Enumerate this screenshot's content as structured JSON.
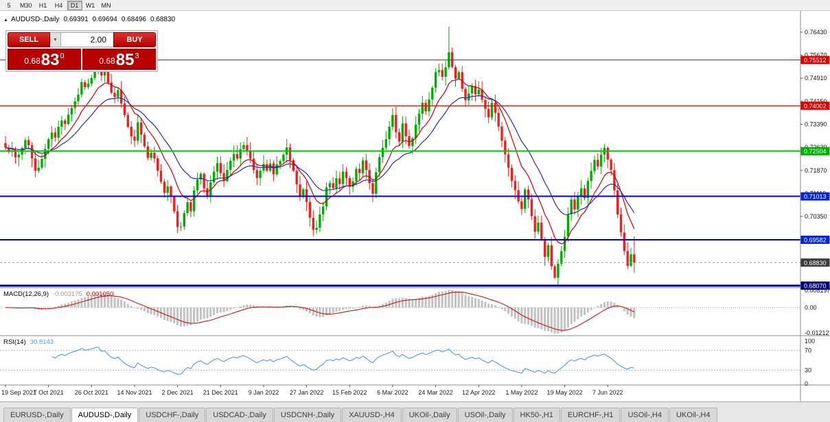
{
  "toolbar": {
    "timeframes": [
      {
        "label": "5",
        "active": false
      },
      {
        "label": "M30",
        "active": false
      },
      {
        "label": "H1",
        "active": false
      },
      {
        "label": "H4",
        "active": false
      },
      {
        "label": "D1",
        "active": true
      },
      {
        "label": "W1",
        "active": false
      },
      {
        "label": "MN",
        "active": false
      }
    ]
  },
  "icons": {
    "symbol_arrow": "▲",
    "dropdown_arrow": "▼"
  },
  "chart": {
    "title": "AUDUSD-,Daily",
    "ohlc": {
      "open": "0.69391",
      "high": "0.69694",
      "low": "0.68496",
      "close": "0.68830"
    }
  },
  "trade_panel": {
    "sell_label": "SELL",
    "buy_label": "BUY",
    "volume": "2.00",
    "sell_price": {
      "prefix": "0.68",
      "big": "83",
      "sup": "0"
    },
    "buy_price": {
      "prefix": "0.68",
      "big": "85",
      "sup": "3"
    }
  },
  "price_axis": {
    "ticks": [
      "0.76430",
      "0.75670",
      "0.74910",
      "0.74150",
      "0.73390",
      "0.72630",
      "0.71870",
      "0.71110",
      "0.70350",
      "0.69590",
      "0.68830",
      "0.68070"
    ],
    "badges": [
      {
        "text": "0.75512",
        "price": 0.75512,
        "color": "#dd0000"
      },
      {
        "text": "0.74002",
        "price": 0.74002,
        "color": "#dd0000"
      },
      {
        "text": "0.72504",
        "price": 0.72504,
        "color": "#00b000"
      },
      {
        "text": "0.71013",
        "price": 0.71013,
        "color": "#0026d8"
      },
      {
        "text": "0.69582",
        "price": 0.69582,
        "color": "#0026d8"
      },
      {
        "text": "0.68830",
        "price": 0.6883,
        "color": "#3a3a3a"
      },
      {
        "text": "0.68070",
        "price": 0.6807,
        "color": "#000080"
      }
    ]
  },
  "hlines": [
    {
      "price": 0.75512,
      "color": "#e00000",
      "w": 1
    },
    {
      "price": 0.74002,
      "color": "#e00000",
      "w": 1
    },
    {
      "price": 0.72504,
      "color": "#00c000",
      "w": 2
    },
    {
      "price": 0.71013,
      "color": "#0000e0",
      "w": 2
    },
    {
      "price": 0.69582,
      "color": "#0000e0",
      "w": 2
    },
    {
      "price": 0.6807,
      "color": "#000090",
      "w": 3
    }
  ],
  "bid_line": {
    "price": 0.6883,
    "color": "#9a9a9a"
  },
  "chart_data": {
    "type": "candlestick",
    "symbol": "AUDUSD",
    "timeframe": "Daily",
    "y_range": [
      0.68,
      0.7713
    ],
    "up_color": "#00ae00",
    "down_color": "#ef2020",
    "closes": [
      0.7262,
      0.7248,
      0.7252,
      0.723,
      0.7239,
      0.7261,
      0.7287,
      0.727,
      0.7227,
      0.7186,
      0.7196,
      0.7225,
      0.7258,
      0.729,
      0.7312,
      0.7295,
      0.7331,
      0.7352,
      0.734,
      0.7371,
      0.7393,
      0.7415,
      0.7437,
      0.7478,
      0.7462,
      0.7473,
      0.7492,
      0.7518,
      0.7536,
      0.75,
      0.7513,
      0.7477,
      0.7443,
      0.7429,
      0.7452,
      0.7408,
      0.737,
      0.7331,
      0.7299,
      0.7285,
      0.7345,
      0.7305,
      0.7266,
      0.7228,
      0.7245,
      0.7227,
      0.7186,
      0.715,
      0.7113,
      0.7134,
      0.7101,
      0.7052,
      0.7,
      0.7002,
      0.7046,
      0.7082,
      0.7052,
      0.7121,
      0.7157,
      0.7176,
      0.7128,
      0.7103,
      0.7148,
      0.7183,
      0.7211,
      0.7178,
      0.7152,
      0.7189,
      0.7219,
      0.7241,
      0.7226,
      0.7257,
      0.7271,
      0.7252,
      0.7226,
      0.7188,
      0.7162,
      0.7186,
      0.7208,
      0.7186,
      0.721,
      0.7174,
      0.7207,
      0.7218,
      0.7239,
      0.7263,
      0.7221,
      0.7186,
      0.7141,
      0.7103,
      0.7125,
      0.7083,
      0.7031,
      0.6991,
      0.6998,
      0.7042,
      0.7068,
      0.7131,
      0.7145,
      0.7128,
      0.7161,
      0.7142,
      0.7183,
      0.7162,
      0.7133,
      0.7151,
      0.7192,
      0.7178,
      0.722,
      0.7188,
      0.7145,
      0.711,
      0.7181,
      0.7231,
      0.7262,
      0.729,
      0.7331,
      0.737,
      0.7313,
      0.7282,
      0.7342,
      0.73,
      0.7267,
      0.7293,
      0.7338,
      0.7374,
      0.741,
      0.7382,
      0.7421,
      0.746,
      0.7511,
      0.7518,
      0.7496,
      0.7527,
      0.7577,
      0.7528,
      0.749,
      0.7511,
      0.7456,
      0.7418,
      0.7441,
      0.7465,
      0.7438,
      0.7454,
      0.742,
      0.739,
      0.7362,
      0.741,
      0.7377,
      0.7332,
      0.7285,
      0.724,
      0.7196,
      0.7152,
      0.7122,
      0.7085,
      0.706,
      0.7124,
      0.7091,
      0.7036,
      0.6985,
      0.7015,
      0.6958,
      0.6902,
      0.694,
      0.6871,
      0.6833,
      0.6879,
      0.6921,
      0.6968,
      0.7042,
      0.7091,
      0.7058,
      0.7102,
      0.7128,
      0.7096,
      0.7152,
      0.7185,
      0.7222,
      0.72,
      0.7239,
      0.7262,
      0.7223,
      0.7188,
      0.7121,
      0.7042,
      0.6982,
      0.6921,
      0.6872,
      0.691,
      0.6883
    ],
    "wick_overrides": [
      {
        "i": 134,
        "high": 0.7661
      },
      {
        "i": 166,
        "low": 0.6829
      },
      {
        "i": 190,
        "high": 0.69694,
        "low": 0.68496
      }
    ],
    "overlays": [
      {
        "name": "ma-fast",
        "period": 10,
        "color": "#cc0000"
      },
      {
        "name": "ma-slow",
        "period": 21,
        "color": "#2929b0"
      }
    ],
    "x_labels": [
      {
        "index": 0,
        "label": "19 Sep 2021"
      },
      {
        "index": 13,
        "label": "7 Oct 2021"
      },
      {
        "index": 26,
        "label": "26 Oct 2021"
      },
      {
        "index": 39,
        "label": "14 Nov 2021"
      },
      {
        "index": 52,
        "label": "2 Dec 2021"
      },
      {
        "index": 65,
        "label": "21 Dec 2021"
      },
      {
        "index": 78,
        "label": "9 Jan 2022"
      },
      {
        "index": 91,
        "label": "27 Jan 2022"
      },
      {
        "index": 104,
        "label": "15 Feb 2022"
      },
      {
        "index": 117,
        "label": "6 Mar 2022"
      },
      {
        "index": 130,
        "label": "24 Mar 2022"
      },
      {
        "index": 143,
        "label": "12 Apr 2022"
      },
      {
        "index": 156,
        "label": "1 May 2022"
      },
      {
        "index": 169,
        "label": "19 May 2022"
      },
      {
        "index": 182,
        "label": "7 Jun 2022"
      }
    ]
  },
  "macd": {
    "label": "MACD(12,26,9)",
    "value_main": "-0.003175",
    "value_signal": "0.001050",
    "params": {
      "fast": 12,
      "slow": 26,
      "signal": 9
    },
    "scale": {
      "top": 0.0095,
      "bottom": -0.0135
    },
    "histogram_color": "#c2c2c2",
    "signal_color": "#cc0000",
    "axis_labels": [
      {
        "text": "0.008197",
        "value": 0.008197
      },
      {
        "text": "0.00",
        "value": 0
      },
      {
        "text": "-0.01212",
        "value": -0.01212
      }
    ]
  },
  "rsi": {
    "label": "RSI(14)",
    "value": "30.8143",
    "period": 14,
    "color": "#4a9fd8",
    "levels": [
      70,
      30
    ],
    "scale": [
      0,
      100
    ],
    "axis_labels": [
      {
        "text": "100",
        "value": 100
      },
      {
        "text": "70",
        "value": 70
      },
      {
        "text": "30",
        "value": 30
      },
      {
        "text": "0",
        "value": 0
      }
    ]
  },
  "bottom_tabs": [
    {
      "label": "EURUSD-,Daily",
      "active": false
    },
    {
      "label": "AUDUSD-,Daily",
      "active": true
    },
    {
      "label": "USDCHF-,Daily",
      "active": false
    },
    {
      "label": "USDCAD-,Daily",
      "active": false
    },
    {
      "label": "USDCNH-,Daily",
      "active": false
    },
    {
      "label": "XAUUSD-,H4",
      "active": false
    },
    {
      "label": "UKOil-,Daily",
      "active": false
    },
    {
      "label": "USOil-,Daily",
      "active": false
    },
    {
      "label": "HK50-,H1",
      "active": false
    },
    {
      "label": "EURCHF-,H1",
      "active": false
    },
    {
      "label": "USOil-,H4",
      "active": false
    },
    {
      "label": "UKOil-,H4",
      "active": false
    }
  ]
}
